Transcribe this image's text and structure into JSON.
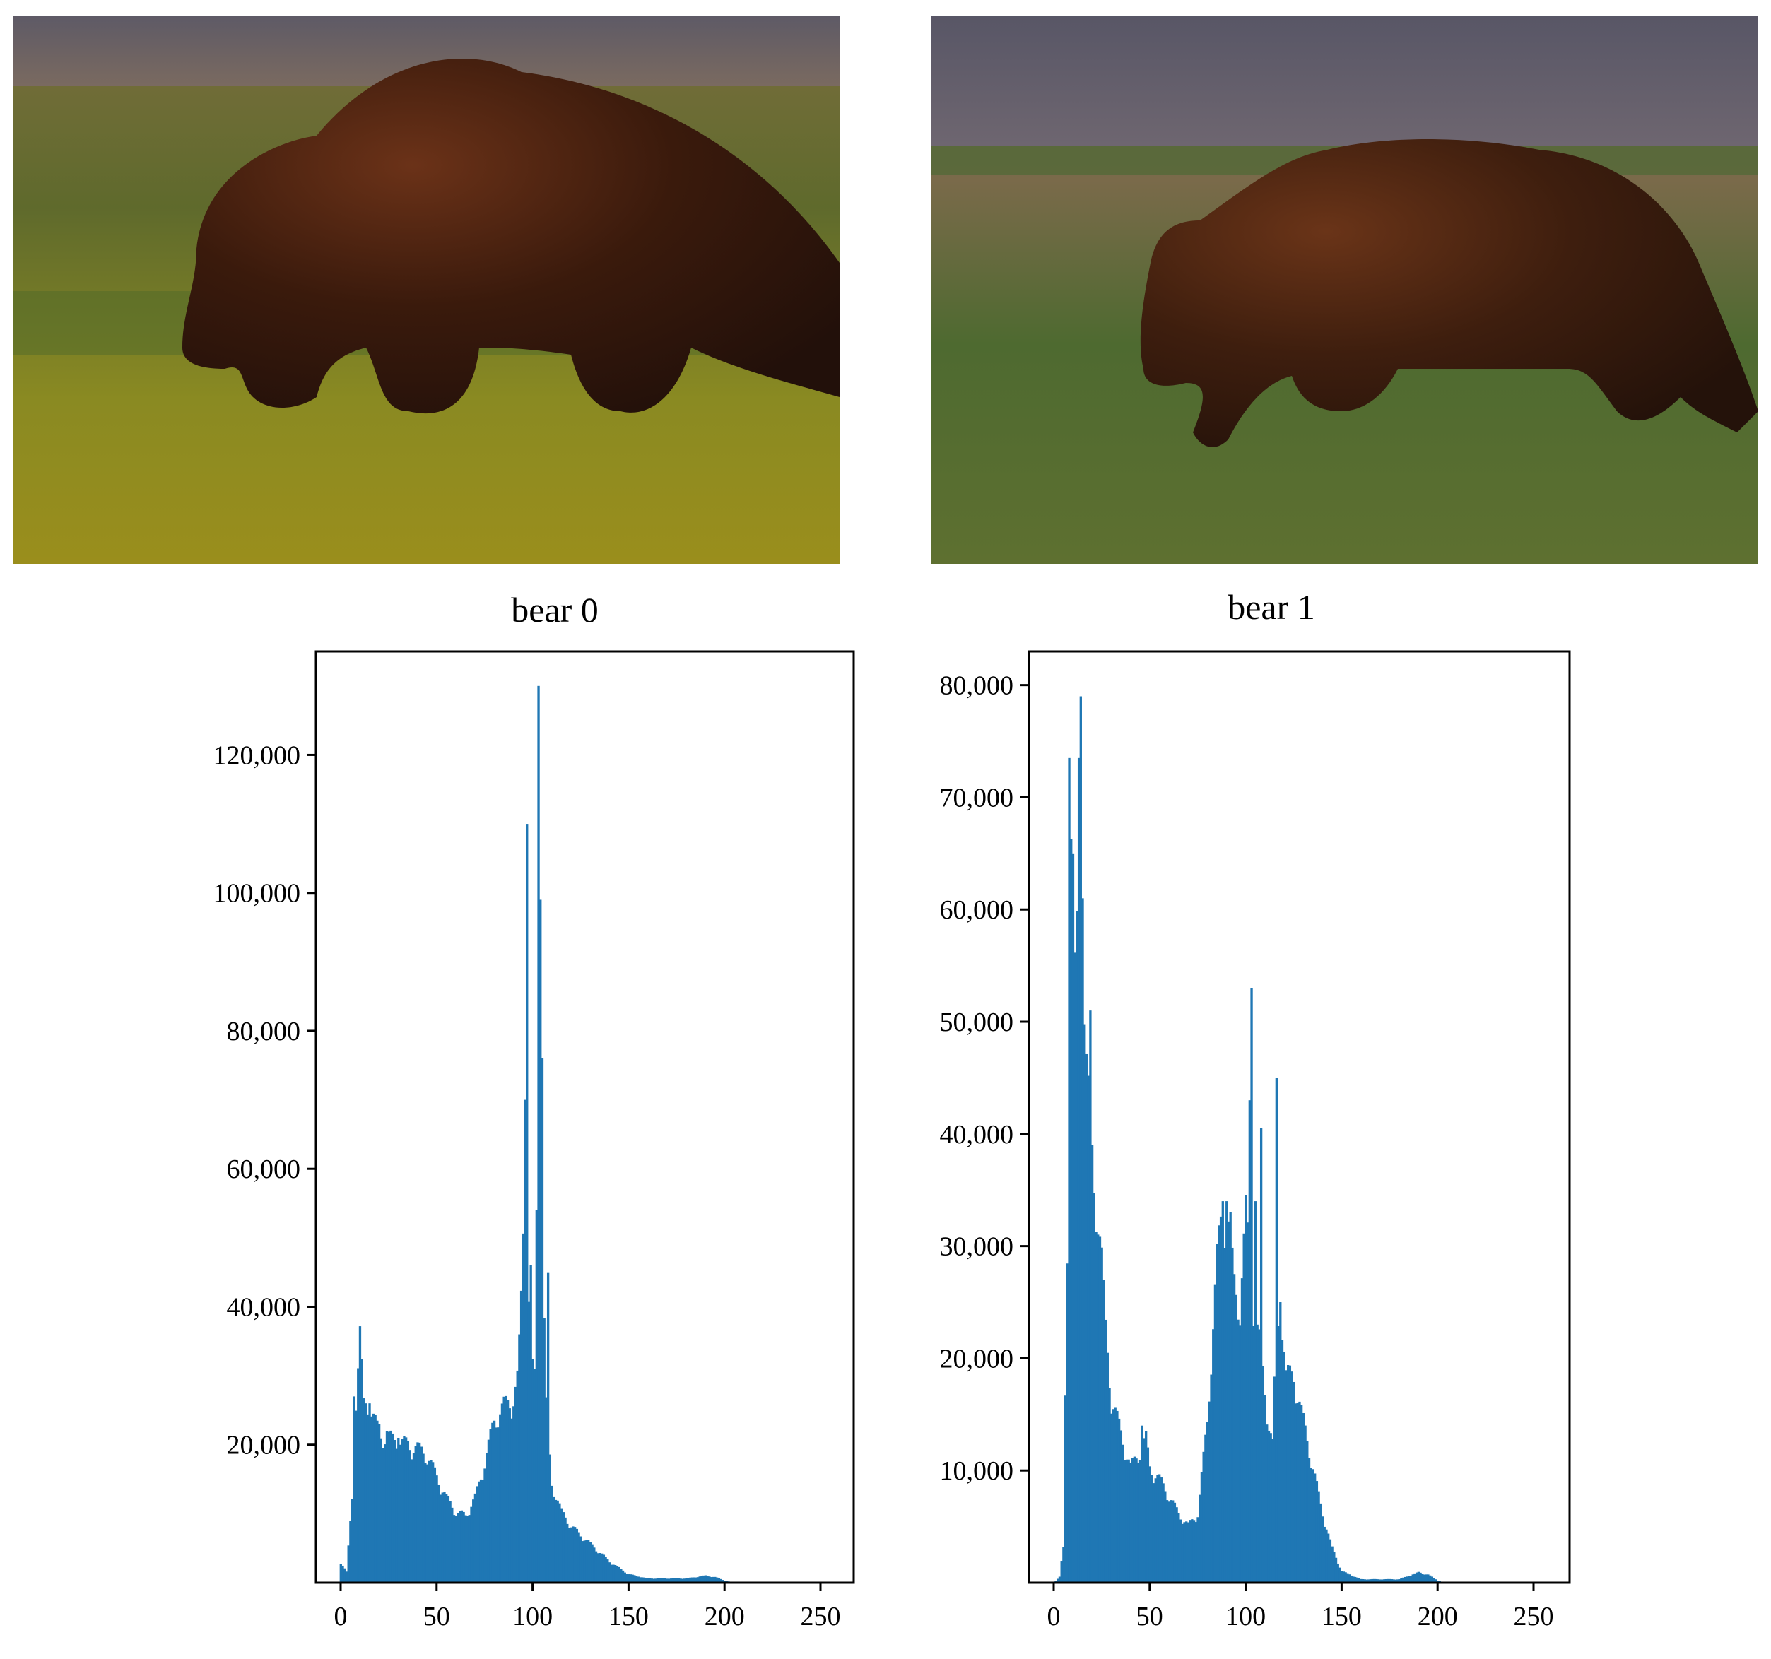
{
  "photos": [
    {
      "subject": "brown bear walking in grass"
    },
    {
      "subject": "brown bear walking in tall grass"
    }
  ],
  "colors": {
    "bar": "#1f77b4",
    "frame": "#000000"
  },
  "chart_data": [
    {
      "type": "bar",
      "title": "bear 0",
      "xlabel": "",
      "ylabel": "",
      "xlim": [
        -5,
        270
      ],
      "ylim": [
        0,
        135000
      ],
      "xticks": [
        "0",
        "50",
        "100",
        "150",
        "200",
        "250"
      ],
      "yticks": [
        "20,000",
        "40,000",
        "60,000",
        "80,000",
        "100,000",
        "120,000"
      ],
      "grid": false,
      "profile": [
        [
          0,
          3000
        ],
        [
          3,
          1500
        ],
        [
          6,
          12000
        ],
        [
          8,
          26000
        ],
        [
          10,
          35000
        ],
        [
          12,
          25000
        ],
        [
          15,
          25000
        ],
        [
          20,
          21000
        ],
        [
          30,
          20000
        ],
        [
          40,
          19000
        ],
        [
          45,
          18000
        ],
        [
          50,
          15000
        ],
        [
          55,
          12000
        ],
        [
          60,
          10000
        ],
        [
          65,
          9500
        ],
        [
          70,
          12000
        ],
        [
          75,
          17000
        ],
        [
          80,
          23000
        ],
        [
          85,
          25000
        ],
        [
          90,
          26000
        ],
        [
          93,
          30000
        ],
        [
          96,
          60000
        ],
        [
          98,
          40000
        ],
        [
          100,
          30000
        ],
        [
          102,
          28000
        ],
        [
          104,
          60000
        ],
        [
          107,
          25000
        ],
        [
          110,
          14000
        ],
        [
          115,
          10000
        ],
        [
          120,
          8000
        ],
        [
          130,
          5500
        ],
        [
          140,
          3000
        ],
        [
          150,
          1200
        ],
        [
          160,
          600
        ],
        [
          180,
          600
        ],
        [
          190,
          1000
        ],
        [
          195,
          800
        ],
        [
          200,
          300
        ],
        [
          205,
          0
        ]
      ],
      "spikes": [
        [
          7,
          27000
        ],
        [
          10,
          36000
        ],
        [
          13,
          26000
        ],
        [
          15,
          26000
        ],
        [
          20,
          23000
        ],
        [
          24,
          22000
        ],
        [
          30,
          21000
        ],
        [
          35,
          20500
        ],
        [
          40,
          20000
        ],
        [
          93,
          36000
        ],
        [
          96,
          70000
        ],
        [
          97,
          110000
        ],
        [
          99,
          46000
        ],
        [
          102,
          54000
        ],
        [
          103,
          130000
        ],
        [
          104,
          99000
        ],
        [
          105,
          76000
        ],
        [
          108,
          45000
        ]
      ]
    },
    {
      "type": "bar",
      "title": "bear 1",
      "xlabel": "",
      "ylabel": "",
      "xlim": [
        -5,
        270
      ],
      "ylim": [
        0,
        83000
      ],
      "xticks": [
        "0",
        "50",
        "100",
        "150",
        "200",
        "250"
      ],
      "yticks": [
        "10,000",
        "20,000",
        "30,000",
        "40,000",
        "50,000",
        "60,000",
        "70,000",
        "80,000"
      ],
      "grid": false,
      "profile": [
        [
          0,
          0
        ],
        [
          3,
          500
        ],
        [
          5,
          3000
        ],
        [
          7,
          30000
        ],
        [
          9,
          65000
        ],
        [
          11,
          52000
        ],
        [
          13,
          60000
        ],
        [
          15,
          55000
        ],
        [
          17,
          45000
        ],
        [
          20,
          36000
        ],
        [
          23,
          32000
        ],
        [
          25,
          28000
        ],
        [
          27,
          22000
        ],
        [
          30,
          16000
        ],
        [
          35,
          13000
        ],
        [
          40,
          10000
        ],
        [
          45,
          11500
        ],
        [
          48,
          12500
        ],
        [
          50,
          10000
        ],
        [
          55,
          9000
        ],
        [
          60,
          7500
        ],
        [
          65,
          6000
        ],
        [
          70,
          5000
        ],
        [
          75,
          6000
        ],
        [
          80,
          14000
        ],
        [
          85,
          28000
        ],
        [
          88,
          33000
        ],
        [
          91,
          31000
        ],
        [
          94,
          26000
        ],
        [
          97,
          24000
        ],
        [
          100,
          32000
        ],
        [
          103,
          26000
        ],
        [
          106,
          22000
        ],
        [
          108,
          20000
        ],
        [
          111,
          15000
        ],
        [
          114,
          12000
        ],
        [
          116,
          22000
        ],
        [
          119,
          23000
        ],
        [
          121,
          18000
        ],
        [
          125,
          18000
        ],
        [
          130,
          14000
        ],
        [
          135,
          10000
        ],
        [
          140,
          6000
        ],
        [
          145,
          3000
        ],
        [
          150,
          1000
        ],
        [
          160,
          300
        ],
        [
          180,
          300
        ],
        [
          190,
          900
        ],
        [
          195,
          700
        ],
        [
          200,
          200
        ],
        [
          203,
          0
        ]
      ],
      "spikes": [
        [
          8,
          73500
        ],
        [
          10,
          65000
        ],
        [
          12,
          51000
        ],
        [
          13,
          73500
        ],
        [
          14,
          79000
        ],
        [
          15,
          61000
        ],
        [
          17,
          45000
        ],
        [
          19,
          51000
        ],
        [
          20,
          39000
        ],
        [
          46,
          14000
        ],
        [
          88,
          34000
        ],
        [
          90,
          34000
        ],
        [
          92,
          33000
        ],
        [
          100,
          31000
        ],
        [
          102,
          43000
        ],
        [
          103,
          53000
        ],
        [
          105,
          34000
        ],
        [
          108,
          40500
        ],
        [
          116,
          45000
        ],
        [
          118,
          25000
        ]
      ]
    }
  ]
}
